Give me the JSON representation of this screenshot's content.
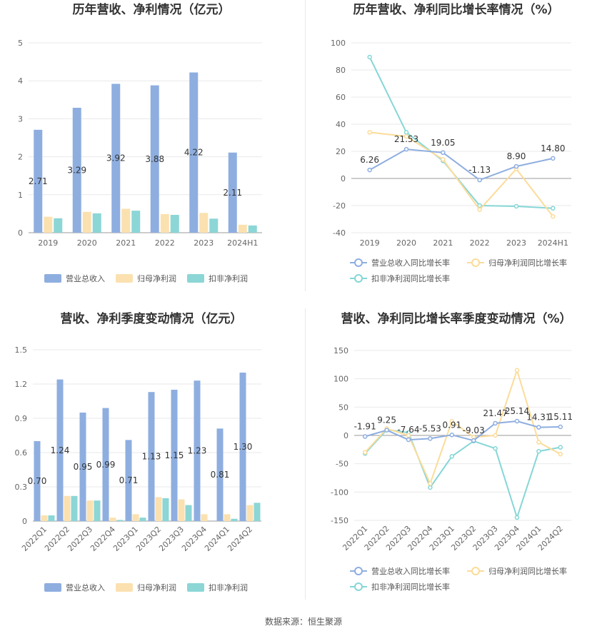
{
  "footer": {
    "source": "数据来源：恒生聚源"
  },
  "colors": {
    "revenue": "#8eaee0",
    "net_profit": "#fbe1b0",
    "deducted_profit": "#8cd6d6",
    "revenue_line": "#8eaee0",
    "net_profit_line": "#fbdc9a",
    "deducted_line": "#86d6d6"
  },
  "chart_data": [
    {
      "type": "bar",
      "title": "历年营收、净利情况（亿元）",
      "categories": [
        "2019",
        "2020",
        "2021",
        "2022",
        "2023",
        "2024H1"
      ],
      "ylim": [
        0,
        5
      ],
      "yticks": [
        "0",
        "1",
        "2",
        "3",
        "4",
        "5"
      ],
      "series": [
        {
          "name": "营业总收入",
          "values": [
            2.71,
            3.29,
            3.92,
            3.88,
            4.22,
            2.11
          ],
          "labels": [
            "2.71",
            "3.29",
            "3.92",
            "3.88",
            "4.22",
            "2.11"
          ]
        },
        {
          "name": "归母净利润",
          "values": [
            0.42,
            0.55,
            0.63,
            0.49,
            0.52,
            0.21
          ]
        },
        {
          "name": "扣非净利润",
          "values": [
            0.38,
            0.51,
            0.58,
            0.47,
            0.37,
            0.19
          ]
        }
      ],
      "legend": "bottom"
    },
    {
      "type": "line",
      "title": "历年营收、净利同比增长率情况（%）",
      "categories": [
        "2019",
        "2020",
        "2021",
        "2022",
        "2023",
        "2024H1"
      ],
      "ylim": [
        -40,
        100
      ],
      "yticks": [
        "-40",
        "-20",
        "0",
        "20",
        "40",
        "60",
        "80",
        "100"
      ],
      "series": [
        {
          "name": "营业总收入同比增长率",
          "values": [
            6.26,
            21.53,
            19.05,
            -1.13,
            8.9,
            14.8
          ],
          "labels": [
            "6.26",
            "21.53",
            "19.05",
            "-1.13",
            "8.90",
            "14.80"
          ]
        },
        {
          "name": "归母净利润同比增长率",
          "values": [
            34,
            31,
            14,
            -23,
            7,
            -28
          ]
        },
        {
          "name": "扣非净利润同比增长率",
          "values": [
            89.5,
            34,
            13,
            -20,
            -20.5,
            -22
          ]
        }
      ],
      "legend": "bottom"
    },
    {
      "type": "bar",
      "title": "营收、净利季度变动情况（亿元）",
      "categories": [
        "2022Q1",
        "2022Q2",
        "2022Q3",
        "2022Q4",
        "2023Q1",
        "2023Q2",
        "2023Q3",
        "2023Q4",
        "2024Q1",
        "2024Q2"
      ],
      "ylim": [
        0,
        1.5
      ],
      "yticks": [
        "0",
        "0.3",
        "0.6",
        "0.9",
        "1.2",
        "1.5"
      ],
      "series": [
        {
          "name": "营业总收入",
          "values": [
            0.7,
            1.24,
            0.95,
            0.99,
            0.71,
            1.13,
            1.15,
            1.23,
            0.81,
            1.3
          ],
          "labels": [
            "0.70",
            "1.24",
            "0.95",
            "0.99",
            "0.71",
            "1.13",
            "1.15",
            "1.23",
            "0.81",
            "1.30"
          ]
        },
        {
          "name": "归母净利润",
          "values": [
            0.05,
            0.22,
            0.18,
            0.03,
            0.06,
            0.21,
            0.19,
            0.06,
            0.06,
            0.14
          ]
        },
        {
          "name": "扣非净利润",
          "values": [
            0.05,
            0.22,
            0.18,
            0.01,
            0.03,
            0.2,
            0.14,
            0.0,
            0.02,
            0.16
          ]
        }
      ],
      "legend": "bottom"
    },
    {
      "type": "line",
      "title": "营收、净利同比增长率季度变动情况（%）",
      "categories": [
        "2022Q1",
        "2022Q2",
        "2022Q3",
        "2022Q4",
        "2023Q1",
        "2023Q2",
        "2023Q3",
        "2023Q4",
        "2024Q1",
        "2024Q2"
      ],
      "ylim": [
        -150,
        150
      ],
      "yticks": [
        "-150",
        "-100",
        "-50",
        "0",
        "50",
        "100",
        "150"
      ],
      "series": [
        {
          "name": "营业总收入同比增长率",
          "values": [
            -1.91,
            9.25,
            -7.64,
            -5.53,
            0.91,
            -9.03,
            21.47,
            25.14,
            14.31,
            15.11
          ],
          "labels": [
            "-1.91",
            "9.25",
            "-7.64",
            "-5.53",
            "0.91",
            "-9.03",
            "21.47",
            "25.14",
            "14.31",
            "15.11"
          ]
        },
        {
          "name": "归母净利润同比增长率",
          "values": [
            -30,
            12,
            0,
            -85,
            25,
            -3,
            0,
            115,
            -12,
            -33
          ]
        },
        {
          "name": "扣非净利润同比增长率",
          "values": [
            -32,
            10,
            5,
            -92,
            -37,
            -10,
            -23,
            -145,
            -28,
            -21
          ]
        }
      ],
      "legend": "bottom"
    }
  ]
}
